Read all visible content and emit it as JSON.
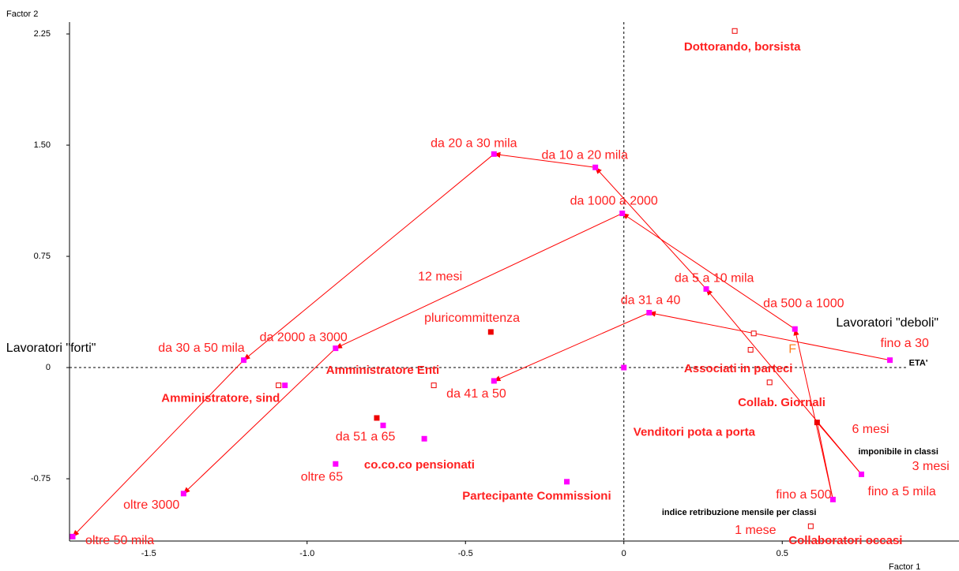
{
  "chart_data": {
    "type": "scatter",
    "xlabel": "Factor 1",
    "ylabel": "Factor 2",
    "xlim": [
      -1.75,
      1.058
    ],
    "ylim": [
      -1.17,
      2.33
    ],
    "xticks": [
      -1.5,
      {
        "value": -1.0,
        "label": "-1.0"
      },
      -0.5,
      0,
      0.5
    ],
    "yticks": [
      2.25,
      {
        "value": 1.5,
        "label": "1.50"
      },
      0.75,
      0,
      -0.75
    ],
    "points": [
      {
        "x": -0.41,
        "y": 1.44,
        "color": "#ff00ff",
        "filled": true
      },
      {
        "x": -0.09,
        "y": 1.35,
        "color": "#ff00ff",
        "filled": true
      },
      {
        "x": -0.005,
        "y": 1.04,
        "color": "#ff00ff",
        "filled": true
      },
      {
        "x": 0.26,
        "y": 0.53,
        "color": "#ff00ff",
        "filled": true
      },
      {
        "x": 0.54,
        "y": 0.26,
        "color": "#ff00ff",
        "filled": true
      },
      {
        "x": 0.84,
        "y": 0.05,
        "color": "#ff00ff",
        "filled": true
      },
      {
        "x": 0.08,
        "y": 0.37,
        "color": "#ff00ff",
        "filled": true
      },
      {
        "x": -0.41,
        "y": -0.09,
        "color": "#ff00ff",
        "filled": true
      },
      {
        "x": -1.2,
        "y": 0.05,
        "color": "#ff00ff",
        "filled": true
      },
      {
        "x": -0.91,
        "y": 0.13,
        "color": "#ff00ff",
        "filled": true
      },
      {
        "x": -1.07,
        "y": -0.12,
        "color": "#ff00ff",
        "filled": true
      },
      {
        "x": -0.76,
        "y": -0.39,
        "color": "#ff00ff",
        "filled": true
      },
      {
        "x": -0.63,
        "y": -0.48,
        "color": "#ff00ff",
        "filled": true
      },
      {
        "x": -0.91,
        "y": -0.65,
        "color": "#ff00ff",
        "filled": true
      },
      {
        "x": -1.39,
        "y": -0.85,
        "color": "#ff00ff",
        "filled": true
      },
      {
        "x": -1.74,
        "y": -1.14,
        "color": "#ff00ff",
        "filled": true
      },
      {
        "x": -0.18,
        "y": -0.77,
        "color": "#ff00ff",
        "filled": true
      },
      {
        "x": 0.75,
        "y": -0.72,
        "color": "#ff00ff",
        "filled": true
      },
      {
        "x": 0.66,
        "y": -0.89,
        "color": "#ff00ff",
        "filled": true
      },
      {
        "x": 0,
        "y": 0,
        "color": "#ff00ff",
        "filled": true
      },
      {
        "x": -0.42,
        "y": 0.24,
        "color": "#ee0000",
        "filled": true
      },
      {
        "x": -0.78,
        "y": -0.34,
        "color": "#ee0000",
        "filled": true
      },
      {
        "x": 0.61,
        "y": -0.37,
        "color": "#ee0000",
        "filled": true
      },
      {
        "x": 0.35,
        "y": 2.27,
        "color": "#ee0000",
        "filled": false
      },
      {
        "x": -1.09,
        "y": -0.12,
        "color": "#ee0000",
        "filled": false
      },
      {
        "x": -0.6,
        "y": -0.12,
        "color": "#ee0000",
        "filled": false
      },
      {
        "x": 0.41,
        "y": 0.23,
        "color": "#ee0000",
        "filled": false
      },
      {
        "x": 0.4,
        "y": 0.12,
        "color": "#ee0000",
        "filled": false
      },
      {
        "x": 0.46,
        "y": -0.1,
        "color": "#ee0000",
        "filled": false
      },
      {
        "x": 0.59,
        "y": -1.07,
        "color": "#ee0000",
        "filled": false
      }
    ],
    "arrows": [
      {
        "from": 1,
        "to": 0,
        "head": true
      },
      {
        "from": 3,
        "to": 1,
        "head": true
      },
      {
        "from": 4,
        "to": 2,
        "head": true
      },
      {
        "from": 0,
        "to": 8,
        "head": true
      },
      {
        "from": 8,
        "to": 15,
        "head": true
      },
      {
        "from": 2,
        "to": 9,
        "head": true
      },
      {
        "from": 9,
        "to": 14,
        "head": true
      },
      {
        "from": 5,
        "to": 6,
        "head": true
      },
      {
        "from": 6,
        "to": 7,
        "head": true
      },
      {
        "from": 17,
        "to": 3,
        "head": true
      },
      {
        "from": 18,
        "to": 4,
        "head": true
      },
      {
        "from": 22,
        "to": 18,
        "head": false
      },
      {
        "from": 22,
        "to": 17,
        "head": false
      }
    ],
    "annotations": [
      {
        "text": "Dottorando, borsista",
        "x": 0.19,
        "y": 2.16,
        "color": "#ff2020",
        "bold": true
      },
      {
        "text": "da 20 a 30 mila",
        "x": -0.61,
        "y": 1.51,
        "color": "#ff2020",
        "bold": false
      },
      {
        "text": "da 10 a 20 mila",
        "x": -0.26,
        "y": 1.43,
        "color": "#ff2020",
        "bold": false
      },
      {
        "text": "da 1000 a 2000",
        "x": -0.17,
        "y": 1.12,
        "color": "#ff2020",
        "bold": false
      },
      {
        "text": "12 mesi",
        "x": -0.65,
        "y": 0.61,
        "color": "#ff2020",
        "bold": false
      },
      {
        "text": "da 5 a 10 mila",
        "x": 0.16,
        "y": 0.6,
        "color": "#ff2020",
        "bold": false
      },
      {
        "text": "da 500 a 1000",
        "x": 0.44,
        "y": 0.43,
        "color": "#ff2020",
        "bold": false
      },
      {
        "text": "da 31 a 40",
        "x": -0.01,
        "y": 0.45,
        "color": "#ff2020",
        "bold": false
      },
      {
        "text": "pluricommittenza",
        "x": -0.63,
        "y": 0.33,
        "color": "#ff2020",
        "bold": false
      },
      {
        "text": "Lavoratori \"deboli\"",
        "x": 0.67,
        "y": 0.3,
        "color": "#000000",
        "bold": false
      },
      {
        "text": "F",
        "x": 0.52,
        "y": 0.12,
        "color": "#ff8020",
        "bold": false
      },
      {
        "text": "fino a 30",
        "x": 0.81,
        "y": 0.16,
        "color": "#ff2020",
        "bold": false
      },
      {
        "text": "ETA'",
        "x": 0.9,
        "y": 0.03,
        "color": "#000000",
        "bold": true
      },
      {
        "text": "Lavoratori \"forti\"",
        "x": -1.95,
        "y": 0.13,
        "color": "#000000",
        "bold": false
      },
      {
        "text": "da 30 a 50 mila",
        "x": -1.47,
        "y": 0.13,
        "color": "#ff2020",
        "bold": false
      },
      {
        "text": "da 2000 a 3000",
        "x": -1.15,
        "y": 0.2,
        "color": "#ff2020",
        "bold": false
      },
      {
        "text": "Amministratore Enti",
        "x": -0.94,
        "y": -0.02,
        "color": "#ff2020",
        "bold": true
      },
      {
        "text": "Associati in parteci",
        "x": 0.19,
        "y": -0.01,
        "color": "#ff2020",
        "bold": true
      },
      {
        "text": "da 41 a 50",
        "x": -0.56,
        "y": -0.18,
        "color": "#ff2020",
        "bold": false
      },
      {
        "text": "Amministratore, sind",
        "x": -1.46,
        "y": -0.21,
        "color": "#ff2020",
        "bold": true
      },
      {
        "text": "Collab. Giornali",
        "x": 0.36,
        "y": -0.24,
        "color": "#ff2020",
        "bold": true
      },
      {
        "text": "da 51 a 65",
        "x": -0.91,
        "y": -0.47,
        "color": "#ff2020",
        "bold": false
      },
      {
        "text": "Venditori pota a porta",
        "x": 0.03,
        "y": -0.44,
        "color": "#ff2020",
        "bold": true
      },
      {
        "text": "6 mesi",
        "x": 0.72,
        "y": -0.42,
        "color": "#ff2020",
        "bold": false
      },
      {
        "text": "imponibile in classi",
        "x": 0.74,
        "y": -0.57,
        "color": "#000000",
        "bold": true
      },
      {
        "text": "co.co.co pensionati",
        "x": -0.82,
        "y": -0.66,
        "color": "#ff2020",
        "bold": true
      },
      {
        "text": "3 mesi",
        "x": 0.91,
        "y": -0.67,
        "color": "#ff2020",
        "bold": false
      },
      {
        "text": "oltre 65",
        "x": -1.02,
        "y": -0.74,
        "color": "#ff2020",
        "bold": false
      },
      {
        "text": "fino a 5 mila",
        "x": 0.77,
        "y": -0.84,
        "color": "#ff2020",
        "bold": false
      },
      {
        "text": "Partecipante Commissioni",
        "x": -0.51,
        "y": -0.87,
        "color": "#ff2020",
        "bold": true
      },
      {
        "text": "oltre 3000",
        "x": -1.58,
        "y": -0.93,
        "color": "#ff2020",
        "bold": false
      },
      {
        "text": "fino a 500",
        "x": 0.48,
        "y": -0.86,
        "color": "#ff2020",
        "bold": false
      },
      {
        "text": "indice retribuzione mensile per classi",
        "x": 0.12,
        "y": -0.98,
        "color": "#000000",
        "bold": true
      },
      {
        "text": "1 mese",
        "x": 0.35,
        "y": -1.1,
        "color": "#ff2020",
        "bold": false
      },
      {
        "text": "Collaboratori occasi",
        "x": 0.52,
        "y": -1.17,
        "color": "#ff2020",
        "bold": true
      },
      {
        "text": "oltre 50 mila",
        "x": -1.7,
        "y": -1.17,
        "color": "#ff2020",
        "bold": false
      }
    ]
  }
}
